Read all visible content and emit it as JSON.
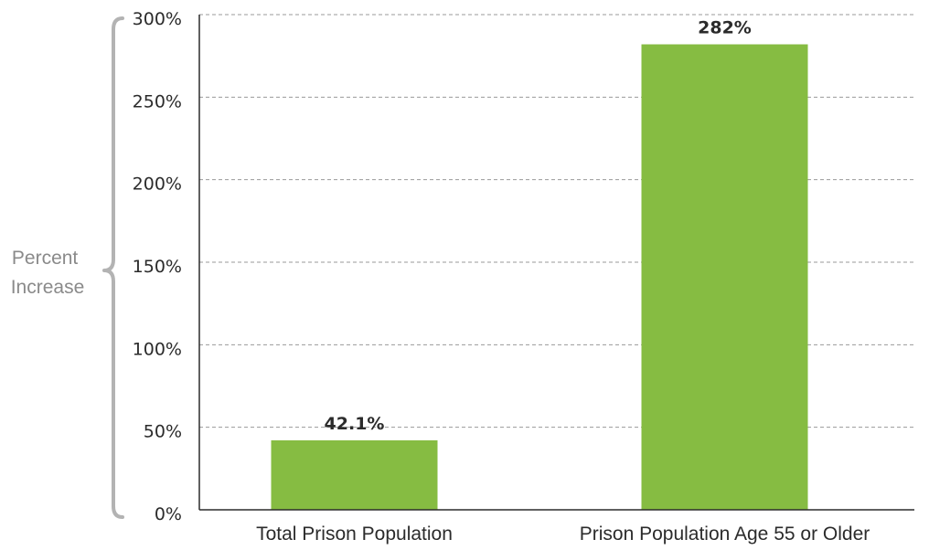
{
  "chart_data": {
    "type": "bar",
    "categories": [
      "Total Prison Population",
      "Prison Population Age 55 or Older"
    ],
    "values": [
      42.1,
      282
    ],
    "data_labels": [
      "42.1%",
      "282%"
    ],
    "ylabel_lines": [
      "Percent",
      "Increase"
    ],
    "ylim": [
      0,
      300
    ],
    "yticks": [
      0,
      50,
      100,
      150,
      200,
      250,
      300
    ],
    "ytick_labels": [
      "0%",
      "50%",
      "100%",
      "150%",
      "200%",
      "250%",
      "300%"
    ],
    "grid": true,
    "bar_color": "#86bc42"
  }
}
